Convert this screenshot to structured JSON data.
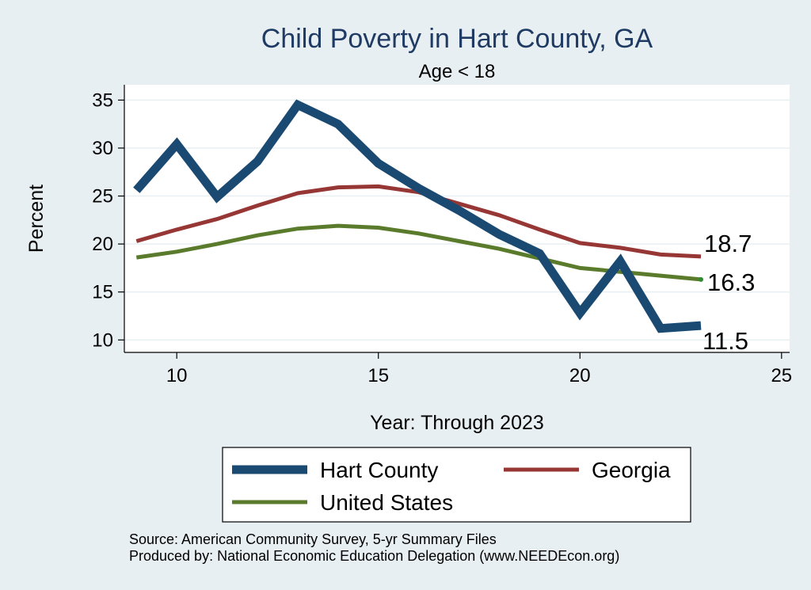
{
  "chart_data": {
    "type": "line",
    "title": "Child Poverty in Hart County, GA",
    "subtitle": "Age < 18",
    "xlabel": "Year: Through 2023",
    "ylabel": "Percent",
    "xlim": [
      8.7,
      25.2
    ],
    "ylim": [
      8.7,
      36.6
    ],
    "xticks": [
      10,
      15,
      20,
      25
    ],
    "yticks": [
      10,
      15,
      20,
      25,
      30,
      35
    ],
    "grid": true,
    "legend_position": "bottom",
    "series": [
      {
        "name": "Hart County",
        "color": "#1a4a72",
        "x": [
          9,
          10,
          11,
          12,
          13,
          14,
          15,
          16,
          17,
          18,
          19,
          20,
          21,
          22,
          23
        ],
        "values": [
          25.6,
          30.4,
          24.9,
          28.6,
          34.5,
          32.5,
          28.4,
          25.8,
          23.5,
          21.0,
          19.0,
          12.8,
          18.2,
          11.2,
          11.5
        ],
        "end_label": "11.5"
      },
      {
        "name": "Georgia",
        "color": "#973735",
        "x": [
          9,
          10,
          11,
          12,
          13,
          14,
          15,
          16,
          17,
          18,
          19,
          20,
          21,
          22,
          23
        ],
        "values": [
          20.3,
          21.5,
          22.6,
          24.0,
          25.3,
          25.9,
          26.0,
          25.4,
          24.2,
          23.0,
          21.5,
          20.1,
          19.6,
          18.9,
          18.7
        ],
        "end_label": "18.7"
      },
      {
        "name": "United States",
        "color": "#5b7b2c",
        "x": [
          9,
          10,
          11,
          12,
          13,
          14,
          15,
          16,
          17,
          18,
          19,
          20,
          21,
          22,
          23
        ],
        "values": [
          18.6,
          19.2,
          20.0,
          20.9,
          21.6,
          21.9,
          21.7,
          21.1,
          20.3,
          19.5,
          18.5,
          17.5,
          17.1,
          16.7,
          16.3
        ],
        "end_label": "16.3"
      }
    ]
  },
  "source_lines": [
    "Source: American Community Survey, 5-yr Summary Files",
    "Produced by: National Economic Education Delegation (www.NEEDEcon.org)"
  ]
}
